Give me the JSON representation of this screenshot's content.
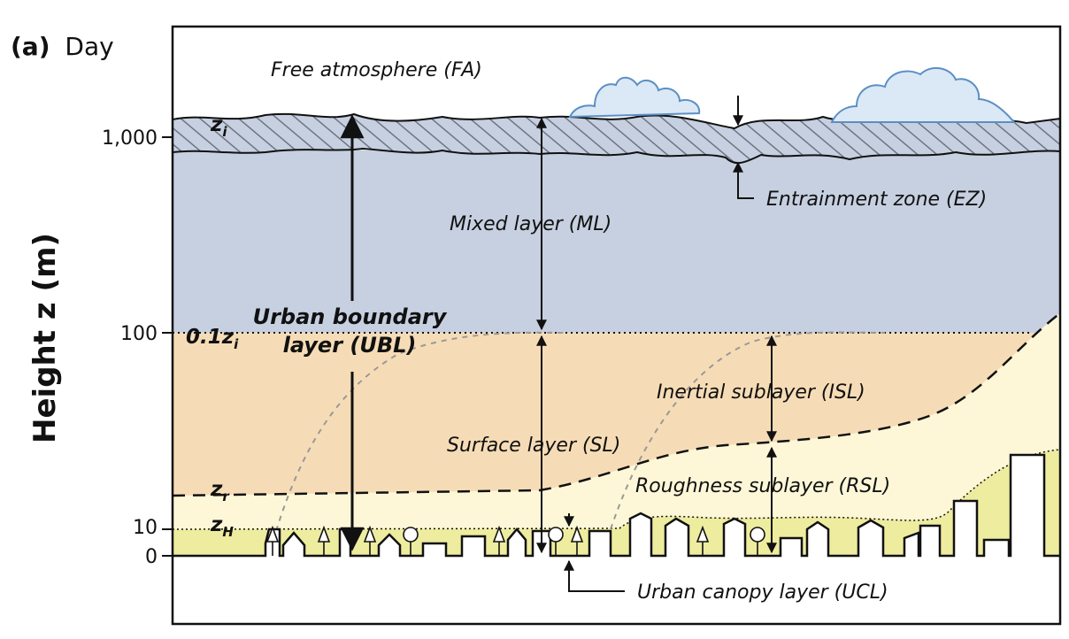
{
  "panel": {
    "letter": "(a)",
    "title": "Day"
  },
  "y_axis": {
    "label": "Height z (m)",
    "ticks": [
      "1,000",
      "100",
      "10",
      "0"
    ]
  },
  "heights": {
    "zi": {
      "symbol": "z",
      "sub": "i"
    },
    "zi_frac": {
      "prefix": "0.1",
      "symbol": "z",
      "sub": "i"
    },
    "zr": {
      "symbol": "z",
      "sub": "r"
    },
    "zh": {
      "symbol": "z",
      "sub": "H"
    }
  },
  "layers": {
    "fa": "Free atmosphere (FA)",
    "ez": "Entrainment zone (EZ)",
    "ml": "Mixed layer (ML)",
    "ubl_line1": "Urban boundary",
    "ubl_line2": "layer (UBL)",
    "isl": "Inertial sublayer (ISL)",
    "sl": "Surface layer (SL)",
    "rsl": "Roughness sublayer (RSL)",
    "ucl": "Urban canopy layer (UCL)"
  },
  "colors": {
    "mixed_layer": "#c6d0e0",
    "surface_layer": "#f6dcb6",
    "inertial_sublayer": "#fdf7d8",
    "canopy": "#eeec9e",
    "cloud_outline": "#5b8fc4",
    "cloud_fill": "#dbe8f5",
    "hatch_line": "#6f7480"
  }
}
